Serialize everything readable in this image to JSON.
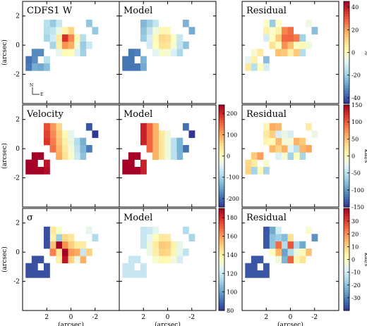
{
  "chart_data": {
    "type": "heatmap",
    "grid": {
      "rows": 3,
      "cols": 3
    },
    "xlabel": "(arcsec)",
    "ylabel": "(arcsec)",
    "xlim": [
      4,
      -4
    ],
    "ylim": [
      -4,
      3
    ],
    "x_ticks": [
      {
        "v": 2,
        "label": "2"
      },
      {
        "v": 0,
        "label": "0"
      },
      {
        "v": -2,
        "label": "-2"
      }
    ],
    "y_ticks": [
      {
        "v": 2,
        "label": "2"
      },
      {
        "v": 0,
        "label": "0"
      },
      {
        "v": -2,
        "label": "-2"
      }
    ],
    "compass": {
      "north": "N",
      "east": "E"
    },
    "colormap": [
      "#313695",
      "#4575b4",
      "#74add1",
      "#abd9e9",
      "#e0f3f8",
      "#ffffbf",
      "#fee090",
      "#fdae61",
      "#f46d43",
      "#d73027",
      "#a50026"
    ],
    "panels": [
      {
        "title": "CDFS1 W",
        "row": 0,
        "col": 0,
        "kind": "flux"
      },
      {
        "title": "Model",
        "row": 0,
        "col": 1,
        "kind": "flux_model"
      },
      {
        "title": "Residual",
        "row": 0,
        "col": 2,
        "kind": "flux_res"
      },
      {
        "title": "Velocity",
        "row": 1,
        "col": 0,
        "kind": "vel"
      },
      {
        "title": "Model",
        "row": 1,
        "col": 1,
        "kind": "vel_model"
      },
      {
        "title": "Residual",
        "row": 1,
        "col": 2,
        "kind": "vel_res"
      },
      {
        "title": "σ",
        "row": 2,
        "col": 0,
        "kind": "sig"
      },
      {
        "title": "Model",
        "row": 2,
        "col": 1,
        "kind": "sig_model"
      },
      {
        "title": "Residual",
        "row": 2,
        "col": 2,
        "kind": "sig_res"
      }
    ],
    "colorbars": [
      {
        "id": "flux_res",
        "row": 0,
        "min": -45,
        "max": 45,
        "ticks": [
          40,
          20,
          0,
          -20,
          -40
        ],
        "unit": "%"
      },
      {
        "id": "vel",
        "row": 1,
        "min": -240,
        "max": 240,
        "ticks": [
          200,
          100,
          0,
          -100,
          -200
        ],
        "unit": ""
      },
      {
        "id": "vel_res",
        "row": 1,
        "min": -150,
        "max": 150,
        "ticks": [
          150,
          100,
          50,
          0,
          -50,
          -100,
          -150
        ],
        "unit": "km/s"
      },
      {
        "id": "sig",
        "row": 2,
        "min": 80,
        "max": 190,
        "ticks": [
          180,
          160,
          140,
          120,
          100,
          80
        ],
        "unit": ""
      },
      {
        "id": "sig_res",
        "row": 2,
        "min": -40,
        "max": 40,
        "ticks": [
          30,
          20,
          10,
          0,
          -10,
          -20,
          -30
        ],
        "unit": "km/s"
      }
    ]
  }
}
